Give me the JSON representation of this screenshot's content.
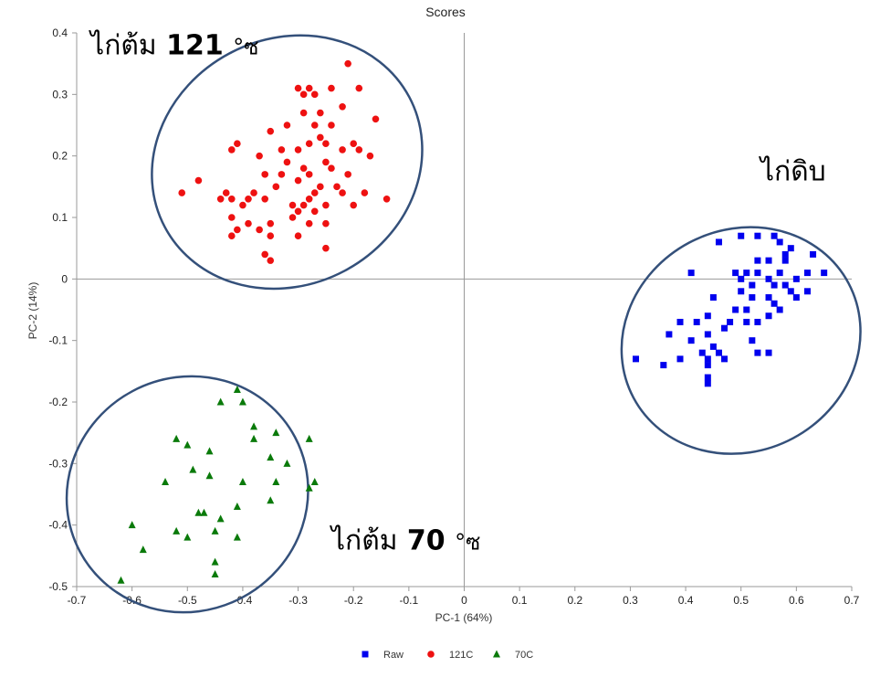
{
  "chart_data": {
    "type": "scatter",
    "title": "Scores",
    "xlabel": "PC-1 (64%)",
    "ylabel": "PC-2 (14%)",
    "xlim": [
      -0.7,
      0.7
    ],
    "ylim": [
      -0.5,
      0.4
    ],
    "xticks": [
      "-0.7",
      "-0.6",
      "-0.5",
      "-0.4",
      "-0.3",
      "-0.2",
      "-0.1",
      "0",
      "0.1",
      "0.2",
      "0.3",
      "0.4",
      "0.5",
      "0.6",
      "0.7"
    ],
    "yticks": [
      "0.4",
      "0.3",
      "0.2",
      "0.1",
      "0",
      "-0.1",
      "-0.2",
      "-0.3",
      "-0.4",
      "-0.5"
    ],
    "grid": false,
    "legend_position": "bottom",
    "series": [
      {
        "name": "Raw",
        "marker": "square",
        "color": "#0000ee",
        "points": [
          [
            0.46,
            0.06
          ],
          [
            0.5,
            0.07
          ],
          [
            0.53,
            0.07
          ],
          [
            0.56,
            0.07
          ],
          [
            0.57,
            0.06
          ],
          [
            0.59,
            0.05
          ],
          [
            0.63,
            0.04
          ],
          [
            0.53,
            0.03
          ],
          [
            0.55,
            0.03
          ],
          [
            0.58,
            0.04
          ],
          [
            0.58,
            0.03
          ],
          [
            0.41,
            0.01
          ],
          [
            0.49,
            0.01
          ],
          [
            0.51,
            0.01
          ],
          [
            0.53,
            0.01
          ],
          [
            0.55,
            0.0
          ],
          [
            0.57,
            0.01
          ],
          [
            0.6,
            0.0
          ],
          [
            0.62,
            0.01
          ],
          [
            0.65,
            0.01
          ],
          [
            0.5,
            0.0
          ],
          [
            0.52,
            -0.01
          ],
          [
            0.56,
            -0.01
          ],
          [
            0.58,
            -0.01
          ],
          [
            0.59,
            -0.02
          ],
          [
            0.55,
            -0.03
          ],
          [
            0.52,
            -0.03
          ],
          [
            0.5,
            -0.02
          ],
          [
            0.45,
            -0.03
          ],
          [
            0.6,
            -0.03
          ],
          [
            0.62,
            -0.02
          ],
          [
            0.49,
            -0.05
          ],
          [
            0.51,
            -0.05
          ],
          [
            0.56,
            -0.04
          ],
          [
            0.44,
            -0.06
          ],
          [
            0.48,
            -0.07
          ],
          [
            0.51,
            -0.07
          ],
          [
            0.53,
            -0.07
          ],
          [
            0.55,
            -0.06
          ],
          [
            0.57,
            -0.05
          ],
          [
            0.39,
            -0.07
          ],
          [
            0.42,
            -0.07
          ],
          [
            0.37,
            -0.09
          ],
          [
            0.44,
            -0.09
          ],
          [
            0.47,
            -0.08
          ],
          [
            0.41,
            -0.1
          ],
          [
            0.52,
            -0.1
          ],
          [
            0.45,
            -0.11
          ],
          [
            0.53,
            -0.12
          ],
          [
            0.55,
            -0.12
          ],
          [
            0.43,
            -0.12
          ],
          [
            0.46,
            -0.12
          ],
          [
            0.39,
            -0.13
          ],
          [
            0.44,
            -0.13
          ],
          [
            0.47,
            -0.13
          ],
          [
            0.31,
            -0.13
          ],
          [
            0.36,
            -0.14
          ],
          [
            0.44,
            -0.14
          ],
          [
            0.44,
            -0.16
          ],
          [
            0.44,
            -0.17
          ]
        ]
      },
      {
        "name": "121C",
        "marker": "circle",
        "color": "#ee1111",
        "points": [
          [
            -0.21,
            0.35
          ],
          [
            -0.3,
            0.31
          ],
          [
            -0.28,
            0.31
          ],
          [
            -0.29,
            0.3
          ],
          [
            -0.27,
            0.3
          ],
          [
            -0.24,
            0.31
          ],
          [
            -0.19,
            0.31
          ],
          [
            -0.26,
            0.27
          ],
          [
            -0.22,
            0.28
          ],
          [
            -0.29,
            0.27
          ],
          [
            -0.16,
            0.26
          ],
          [
            -0.32,
            0.25
          ],
          [
            -0.27,
            0.25
          ],
          [
            -0.24,
            0.25
          ],
          [
            -0.35,
            0.24
          ],
          [
            -0.26,
            0.23
          ],
          [
            -0.28,
            0.22
          ],
          [
            -0.25,
            0.22
          ],
          [
            -0.2,
            0.22
          ],
          [
            -0.33,
            0.21
          ],
          [
            -0.3,
            0.21
          ],
          [
            -0.41,
            0.22
          ],
          [
            -0.42,
            0.21
          ],
          [
            -0.37,
            0.2
          ],
          [
            -0.22,
            0.21
          ],
          [
            -0.19,
            0.21
          ],
          [
            -0.17,
            0.2
          ],
          [
            -0.32,
            0.19
          ],
          [
            -0.25,
            0.19
          ],
          [
            -0.29,
            0.18
          ],
          [
            -0.24,
            0.18
          ],
          [
            -0.28,
            0.17
          ],
          [
            -0.36,
            0.17
          ],
          [
            -0.33,
            0.17
          ],
          [
            -0.3,
            0.16
          ],
          [
            -0.21,
            0.17
          ],
          [
            -0.34,
            0.15
          ],
          [
            -0.26,
            0.15
          ],
          [
            -0.23,
            0.15
          ],
          [
            -0.22,
            0.14
          ],
          [
            -0.18,
            0.14
          ],
          [
            -0.51,
            0.14
          ],
          [
            -0.48,
            0.16
          ],
          [
            -0.43,
            0.14
          ],
          [
            -0.42,
            0.13
          ],
          [
            -0.38,
            0.14
          ],
          [
            -0.39,
            0.13
          ],
          [
            -0.27,
            0.14
          ],
          [
            -0.28,
            0.13
          ],
          [
            -0.29,
            0.12
          ],
          [
            -0.44,
            0.13
          ],
          [
            -0.4,
            0.12
          ],
          [
            -0.36,
            0.13
          ],
          [
            -0.31,
            0.12
          ],
          [
            -0.25,
            0.12
          ],
          [
            -0.2,
            0.12
          ],
          [
            -0.14,
            0.13
          ],
          [
            -0.3,
            0.11
          ],
          [
            -0.27,
            0.11
          ],
          [
            -0.31,
            0.1
          ],
          [
            -0.28,
            0.09
          ],
          [
            -0.25,
            0.09
          ],
          [
            -0.42,
            0.1
          ],
          [
            -0.39,
            0.09
          ],
          [
            -0.35,
            0.09
          ],
          [
            -0.42,
            0.07
          ],
          [
            -0.41,
            0.08
          ],
          [
            -0.37,
            0.08
          ],
          [
            -0.35,
            0.07
          ],
          [
            -0.3,
            0.07
          ],
          [
            -0.25,
            0.05
          ],
          [
            -0.36,
            0.04
          ],
          [
            -0.35,
            0.03
          ]
        ]
      },
      {
        "name": "70C",
        "marker": "triangle",
        "color": "#0a7a0a",
        "points": [
          [
            -0.41,
            -0.18
          ],
          [
            -0.44,
            -0.2
          ],
          [
            -0.4,
            -0.2
          ],
          [
            -0.38,
            -0.24
          ],
          [
            -0.38,
            -0.26
          ],
          [
            -0.34,
            -0.25
          ],
          [
            -0.28,
            -0.26
          ],
          [
            -0.52,
            -0.26
          ],
          [
            -0.5,
            -0.27
          ],
          [
            -0.46,
            -0.28
          ],
          [
            -0.35,
            -0.29
          ],
          [
            -0.32,
            -0.3
          ],
          [
            -0.27,
            -0.33
          ],
          [
            -0.28,
            -0.34
          ],
          [
            -0.34,
            -0.33
          ],
          [
            -0.49,
            -0.31
          ],
          [
            -0.46,
            -0.32
          ],
          [
            -0.54,
            -0.33
          ],
          [
            -0.4,
            -0.33
          ],
          [
            -0.35,
            -0.36
          ],
          [
            -0.41,
            -0.37
          ],
          [
            -0.47,
            -0.38
          ],
          [
            -0.48,
            -0.38
          ],
          [
            -0.44,
            -0.39
          ],
          [
            -0.6,
            -0.4
          ],
          [
            -0.52,
            -0.41
          ],
          [
            -0.5,
            -0.42
          ],
          [
            -0.45,
            -0.41
          ],
          [
            -0.41,
            -0.42
          ],
          [
            -0.58,
            -0.44
          ],
          [
            -0.45,
            -0.46
          ],
          [
            -0.45,
            -0.48
          ],
          [
            -0.62,
            -0.49
          ]
        ]
      }
    ],
    "ellipses": [
      {
        "group": "121C",
        "cx": -0.32,
        "cy": 0.19,
        "rx": 0.25,
        "ry": 0.2,
        "rotate_deg": -28
      },
      {
        "group": "Raw",
        "cx": 0.5,
        "cy": -0.1,
        "rx": 0.22,
        "ry": 0.18,
        "rotate_deg": -28
      },
      {
        "group": "70C",
        "cx": -0.5,
        "cy": -0.35,
        "rx": 0.22,
        "ry": 0.19,
        "rotate_deg": -28
      }
    ],
    "annotations": [
      {
        "label": "ไก่ต้ม",
        "number": "121",
        "unit": "°ซ",
        "at": [
          -0.675,
          0.365
        ]
      },
      {
        "label": "ไก่ดิบ",
        "number": "",
        "unit": "",
        "at": [
          0.535,
          0.16
        ]
      },
      {
        "label": "ไก่ต้ม",
        "number": "70",
        "unit": "°ซ",
        "at": [
          -0.24,
          -0.44
        ]
      }
    ]
  }
}
